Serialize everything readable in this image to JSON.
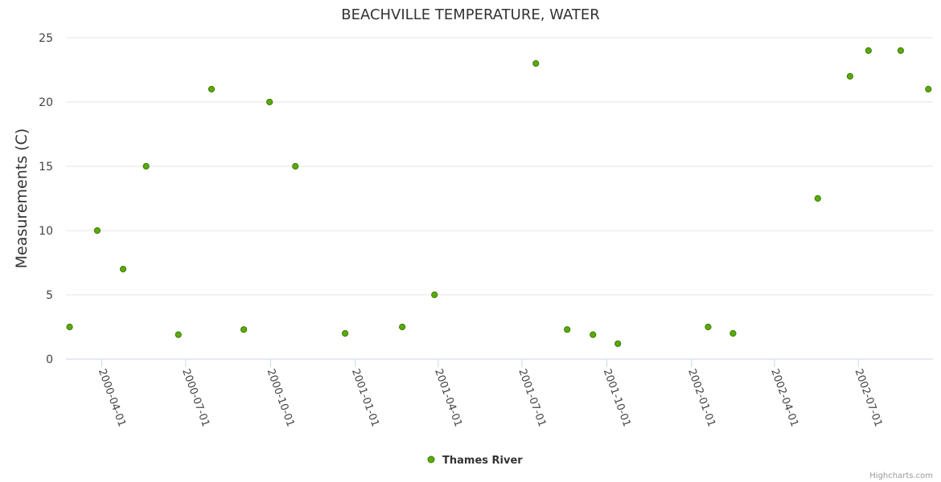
{
  "chart_data": {
    "type": "scatter",
    "title": "BEACHVILLE TEMPERATURE, WATER",
    "xlabel": "",
    "ylabel": "Measurements (C)",
    "ylim": [
      0,
      25
    ],
    "yticks": [
      "0",
      "5",
      "10",
      "15",
      "20",
      "25"
    ],
    "xlim": [
      "2000-02-22",
      "2002-09-20"
    ],
    "xticks": [
      "2000-04-01",
      "2000-07-01",
      "2000-10-01",
      "2001-01-01",
      "2001-04-01",
      "2001-07-01",
      "2001-10-01",
      "2002-01-01",
      "2002-04-01",
      "2002-07-01"
    ],
    "grid": true,
    "legend_position": "bottom-center",
    "colors": {
      "marker_fill": "#5aaa0a",
      "marker_stroke": "#3e7a06",
      "grid": "#e6e6e6",
      "axis": "#ccd6eb"
    },
    "series": [
      {
        "name": "Thames River",
        "points": [
          {
            "x": "2000-02-26",
            "y": 2.5
          },
          {
            "x": "2000-03-27",
            "y": 10
          },
          {
            "x": "2000-04-24",
            "y": 7
          },
          {
            "x": "2000-05-19",
            "y": 15
          },
          {
            "x": "2000-06-23",
            "y": 1.9
          },
          {
            "x": "2000-07-29",
            "y": 21
          },
          {
            "x": "2000-09-02",
            "y": 2.3
          },
          {
            "x": "2000-09-30",
            "y": 20
          },
          {
            "x": "2000-10-28",
            "y": 15
          },
          {
            "x": "2000-12-21",
            "y": 2
          },
          {
            "x": "2001-02-21",
            "y": 2.5
          },
          {
            "x": "2001-03-28",
            "y": 5
          },
          {
            "x": "2001-07-16",
            "y": 23
          },
          {
            "x": "2001-08-19",
            "y": 2.3
          },
          {
            "x": "2001-09-16",
            "y": 1.9
          },
          {
            "x": "2001-10-13",
            "y": 1.2
          },
          {
            "x": "2002-01-19",
            "y": 2.5
          },
          {
            "x": "2002-02-15",
            "y": 2
          },
          {
            "x": "2002-05-18",
            "y": 12.5
          },
          {
            "x": "2002-06-22",
            "y": 22
          },
          {
            "x": "2002-07-12",
            "y": 24
          },
          {
            "x": "2002-08-16",
            "y": 24
          },
          {
            "x": "2002-09-15",
            "y": 21
          }
        ]
      }
    ]
  },
  "credits": "Highcharts.com"
}
